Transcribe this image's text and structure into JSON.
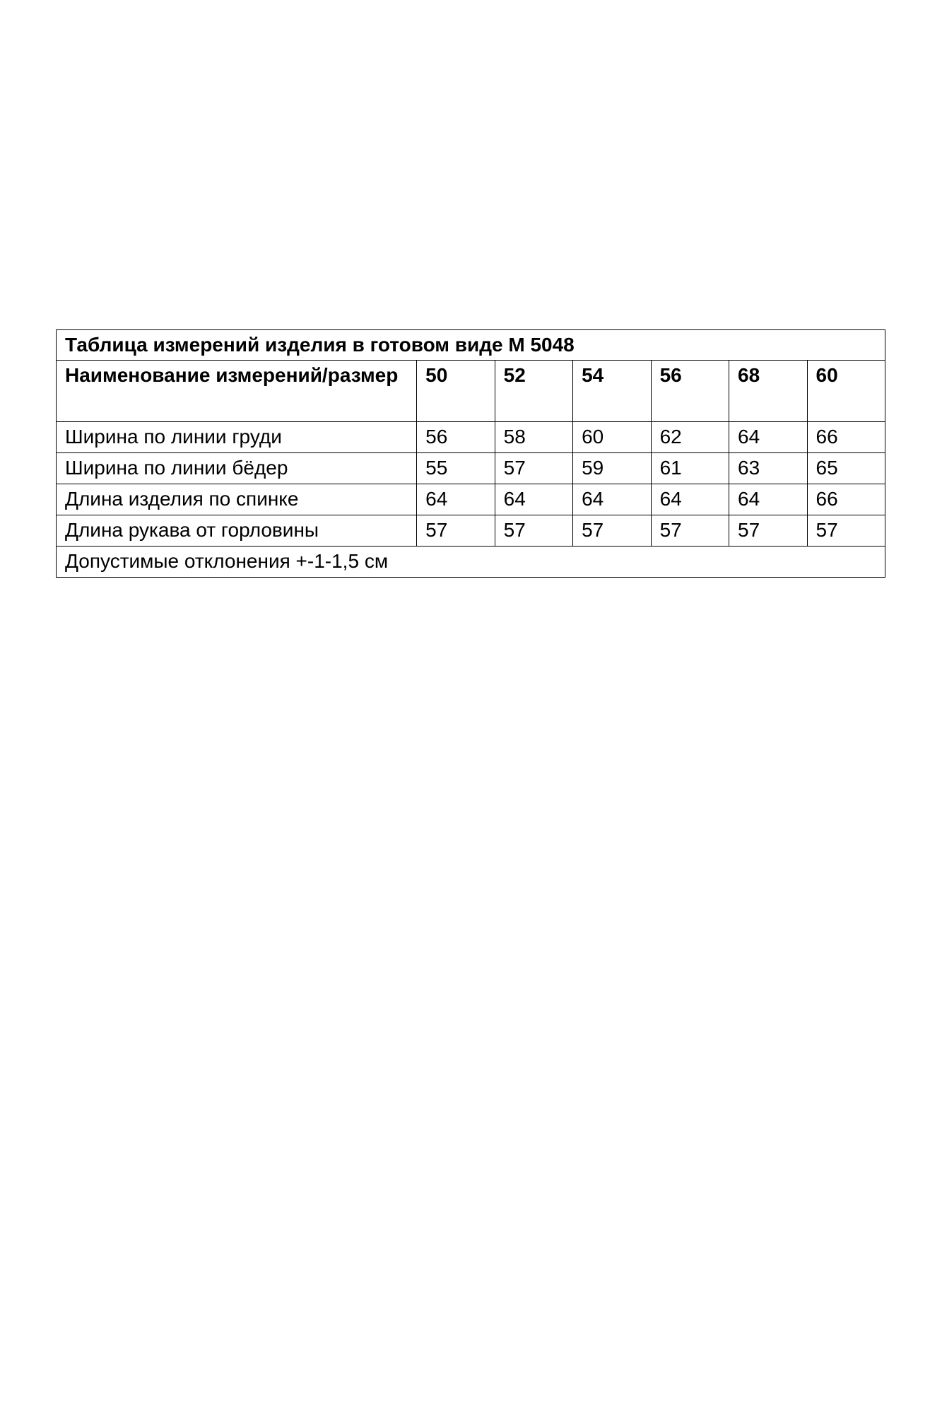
{
  "table": {
    "title": "Таблица измерений изделия в готовом виде М 5048",
    "header_label": "Наименование измерений/размер",
    "sizes": [
      "50",
      "52",
      "54",
      "56",
      "68",
      "60"
    ],
    "rows": [
      {
        "label": "Ширина по линии груди",
        "values": [
          "56",
          "58",
          "60",
          "62",
          "64",
          "66"
        ]
      },
      {
        "label": "Ширина по линии бёдер",
        "values": [
          "55",
          "57",
          "59",
          "61",
          "63",
          "65"
        ]
      },
      {
        "label": "Длина изделия по спинке",
        "values": [
          "64",
          "64",
          "64",
          "64",
          "64",
          "66"
        ]
      },
      {
        "label": "Длина рукава от горловины",
        "values": [
          "57",
          "57",
          "57",
          "57",
          "57",
          "57"
        ]
      }
    ],
    "footer": "Допустимые отклонения +-1-1,5 см"
  }
}
